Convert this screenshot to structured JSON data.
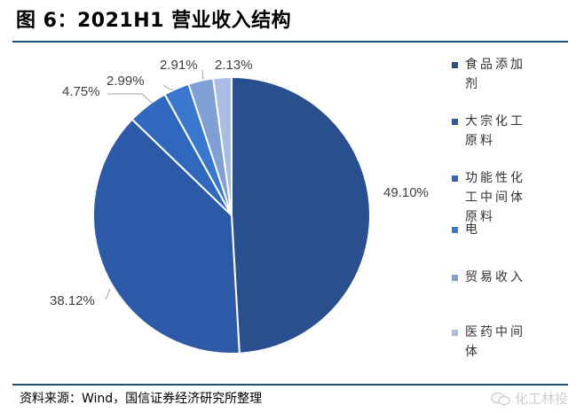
{
  "header": {
    "title": "图 6：2021H1 营业收入结构"
  },
  "footer": {
    "source": "资料来源：Wind，国信证券经济研究所整理",
    "watermark": "化工林投"
  },
  "chart_data": {
    "type": "pie",
    "title": "",
    "legend_position": "right",
    "slices": [
      {
        "label": "食品添加剂",
        "label_lines": [
          "食品添加",
          "剂"
        ],
        "value": 49.1,
        "value_label": "49.10%",
        "color": "#2a4f8f"
      },
      {
        "label": "大宗化工原料",
        "label_lines": [
          "大宗化工",
          "原料"
        ],
        "value": 38.12,
        "value_label": "38.12%",
        "color": "#2d5aa6"
      },
      {
        "label": "功能性化工中间体原料",
        "label_lines": [
          "功能性化",
          "工中间体",
          "原料"
        ],
        "value": 4.75,
        "value_label": "4.75%",
        "color": "#2f68bd"
      },
      {
        "label": "电",
        "label_lines": [
          "电"
        ],
        "value": 2.99,
        "value_label": "2.99%",
        "color": "#3a78d0"
      },
      {
        "label": "贸易收入",
        "label_lines": [
          "贸易收入"
        ],
        "value": 2.91,
        "value_label": "2.91%",
        "color": "#7f9fd5"
      },
      {
        "label": "医药中间体",
        "label_lines": [
          "医药中间",
          "体"
        ],
        "value": 2.13,
        "value_label": "2.13%",
        "color": "#a9bde3"
      }
    ]
  }
}
